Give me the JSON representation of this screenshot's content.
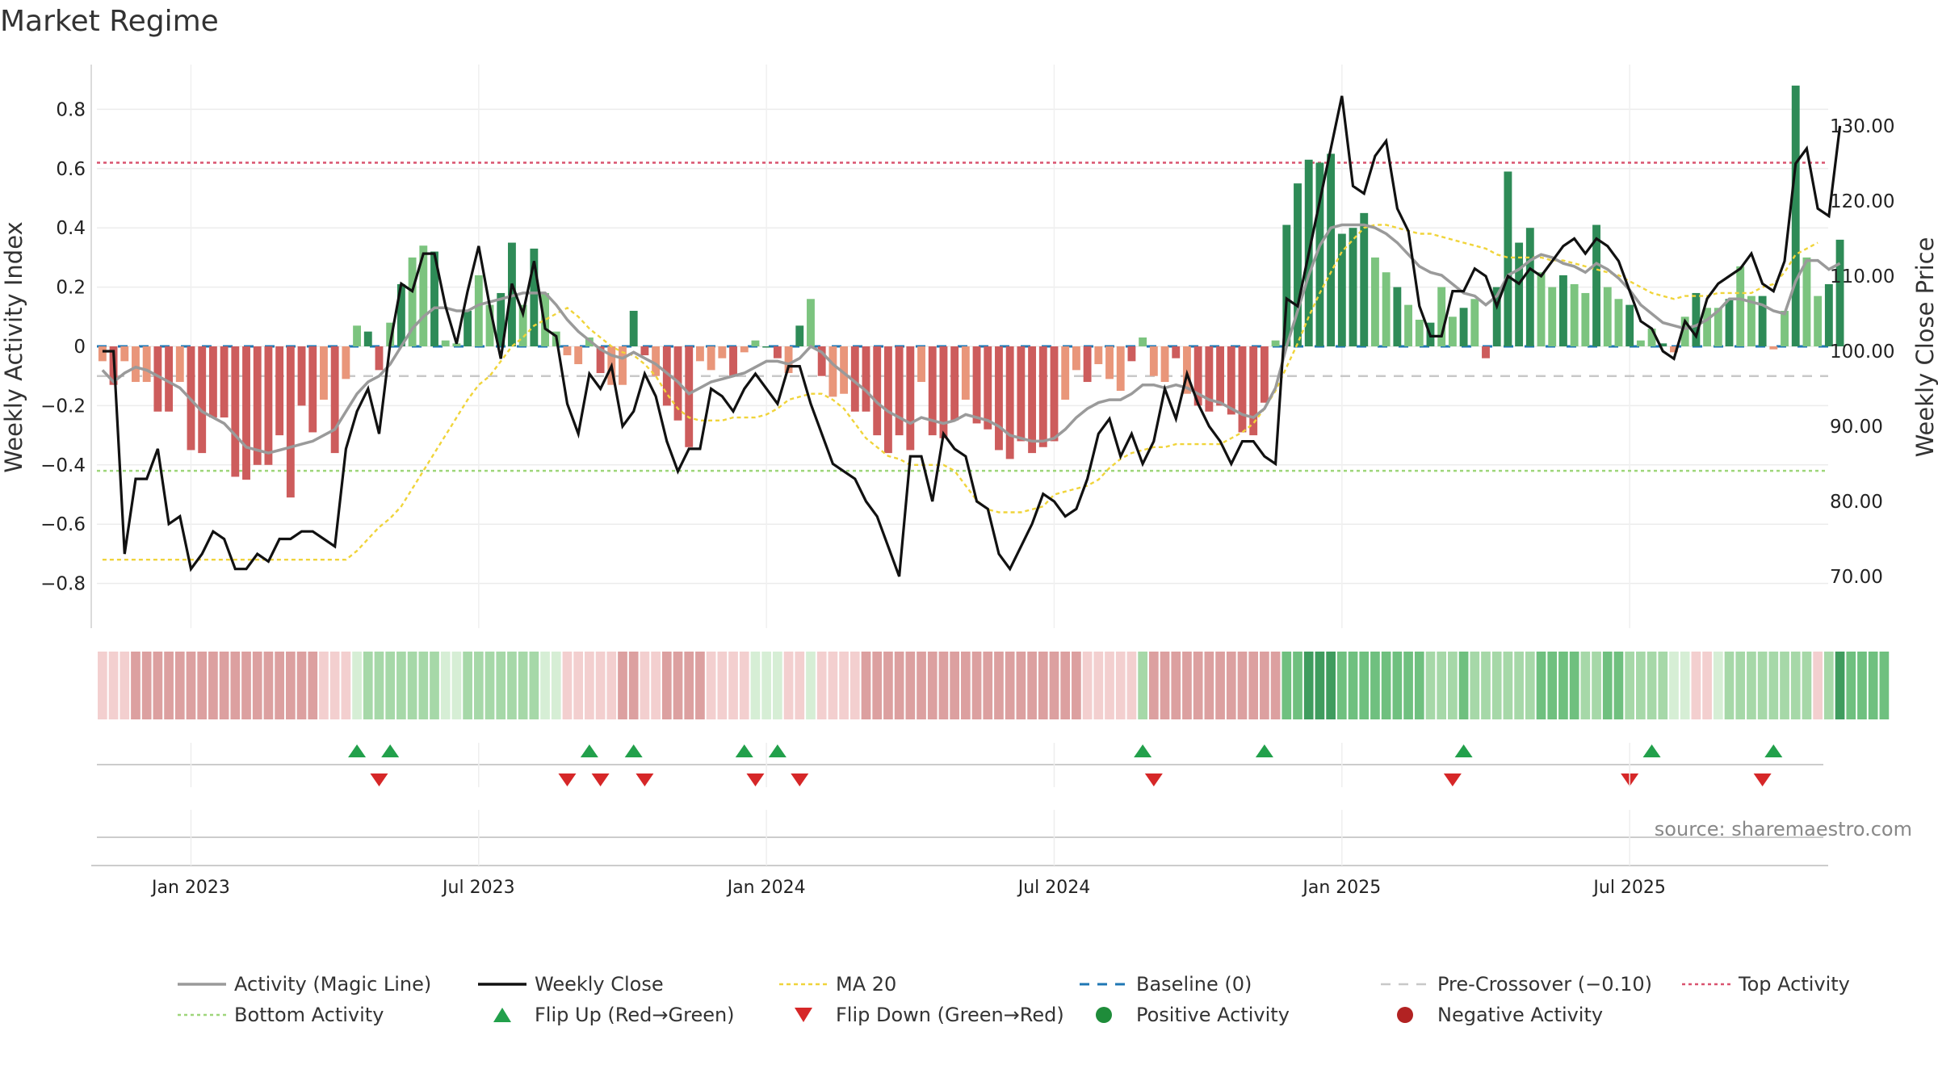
{
  "colors": {
    "bar_strong_green": "#2e8b57",
    "bar_light_green": "#7cc47f",
    "bar_strong_red": "#cd5c5c",
    "bar_light_red": "#e9967a",
    "magic_line": "#9a9a9a",
    "weekly_close": "#111111",
    "ma20": "#f0d43a",
    "baseline": "#1f77b4",
    "pre_crossover": "#c8c8c8",
    "top_activity": "#d9536f",
    "bottom_activity": "#9ed67a",
    "flip_up": "#22a04b",
    "flip_down": "#d62728"
  },
  "chart_data": {
    "type": "bar",
    "title": "Market Regime",
    "ylabel_left": "Weekly Activity Index",
    "ylabel_right": "Weekly Close Price",
    "source": "source: sharemaestro.com",
    "yticks_left": [
      "0.8",
      "0.6",
      "0.4",
      "0.2",
      "0",
      "−0.2",
      "−0.4",
      "−0.6",
      "−0.8"
    ],
    "yticks_right": [
      "130.00",
      "120.00",
      "110.00",
      "100.00",
      "90.00",
      "80.00",
      "70.00"
    ],
    "ylim_left": [
      -0.95,
      0.95
    ],
    "ylim_right": [
      62,
      140
    ],
    "date_ticks": [
      "Jan 2023",
      "Jul 2023",
      "Jan 2024",
      "Jul 2024",
      "Jan 2025",
      "Jul 2025"
    ],
    "date_tick_weeks": [
      8,
      34,
      60,
      86,
      112,
      138
    ],
    "total_weeks": 156,
    "top_activity": 0.62,
    "bottom_activity": -0.42,
    "pre_crossover": -0.1,
    "baseline": 0,
    "activity": [
      -0.05,
      -0.13,
      -0.05,
      -0.12,
      -0.12,
      -0.22,
      -0.22,
      -0.12,
      -0.35,
      -0.36,
      -0.24,
      -0.24,
      -0.44,
      -0.45,
      -0.4,
      -0.4,
      -0.3,
      -0.51,
      -0.2,
      -0.29,
      -0.18,
      -0.36,
      -0.11,
      0.07,
      0.05,
      -0.08,
      0.08,
      0.21,
      0.3,
      0.34,
      0.32,
      0.02,
      0.01,
      0.12,
      0.24,
      0.14,
      0.18,
      0.35,
      0.14,
      0.33,
      0.18,
      0.05,
      -0.03,
      -0.06,
      0.03,
      -0.09,
      -0.13,
      -0.13,
      0.12,
      -0.03,
      -0.1,
      -0.2,
      -0.25,
      -0.34,
      -0.05,
      -0.08,
      -0.04,
      -0.1,
      -0.02,
      0.02,
      0.0,
      -0.04,
      -0.09,
      0.07,
      0.16,
      -0.1,
      -0.17,
      -0.16,
      -0.22,
      -0.22,
      -0.3,
      -0.36,
      -0.3,
      -0.35,
      -0.12,
      -0.3,
      -0.31,
      -0.25,
      -0.18,
      -0.26,
      -0.28,
      -0.35,
      -0.38,
      -0.32,
      -0.36,
      -0.34,
      -0.32,
      -0.18,
      -0.08,
      -0.12,
      -0.06,
      -0.11,
      -0.15,
      -0.05,
      0.03,
      -0.1,
      -0.12,
      -0.04,
      -0.16,
      -0.2,
      -0.22,
      -0.2,
      -0.23,
      -0.29,
      -0.3,
      -0.19,
      0.02,
      0.41,
      0.55,
      0.63,
      0.62,
      0.65,
      0.38,
      0.4,
      0.45,
      0.3,
      0.25,
      0.2,
      0.14,
      0.09,
      0.08,
      0.2,
      0.1,
      0.13,
      0.16,
      -0.04,
      0.2,
      0.59,
      0.35,
      0.4,
      0.25,
      0.2,
      0.24,
      0.21,
      0.18,
      0.41,
      0.2,
      0.16,
      0.14,
      0.02,
      0.06,
      0.01,
      -0.02,
      0.1,
      0.18,
      0.13,
      0.13,
      0.16,
      0.27,
      0.17,
      0.17,
      -0.01,
      0.12,
      0.88,
      0.3,
      0.17,
      0.21,
      0.36
    ],
    "weekly_close": [
      100,
      100,
      73,
      83,
      83,
      87,
      77,
      78,
      71,
      73,
      76,
      75,
      71,
      71,
      73,
      72,
      75,
      75,
      76,
      76,
      75,
      74,
      87,
      92,
      95,
      89,
      101,
      109,
      108,
      113,
      113,
      106,
      101,
      108,
      114,
      106,
      99,
      109,
      105,
      112,
      103,
      102,
      93,
      89,
      97,
      95,
      98,
      90,
      92,
      97,
      94,
      88,
      84,
      87,
      87,
      95,
      94,
      92,
      95,
      97,
      95,
      93,
      98,
      98,
      93,
      89,
      85,
      84,
      83,
      80,
      78,
      74,
      70,
      86,
      86,
      80,
      89,
      87,
      86,
      80,
      79,
      73,
      71,
      74,
      77,
      81,
      80,
      78,
      79,
      83,
      89,
      91,
      86,
      89,
      85,
      88,
      95,
      91,
      97,
      93,
      90,
      88,
      85,
      88,
      88,
      86,
      85,
      107,
      106,
      113,
      120,
      127,
      134,
      122,
      121,
      126,
      128,
      119,
      116,
      106,
      102,
      102,
      108,
      108,
      111,
      110,
      106,
      110,
      109,
      111,
      110,
      112,
      114,
      115,
      113,
      115,
      114,
      112,
      108,
      104,
      103,
      100,
      99,
      104,
      102,
      107,
      109,
      110,
      111,
      113,
      109,
      108,
      112,
      125,
      127,
      119,
      118,
      130
    ],
    "magic_line": [
      -0.08,
      -0.12,
      -0.09,
      -0.07,
      -0.08,
      -0.1,
      -0.12,
      -0.14,
      -0.18,
      -0.22,
      -0.24,
      -0.26,
      -0.3,
      -0.34,
      -0.35,
      -0.36,
      -0.35,
      -0.34,
      -0.33,
      -0.32,
      -0.3,
      -0.28,
      -0.22,
      -0.16,
      -0.12,
      -0.1,
      -0.06,
      0.0,
      0.06,
      0.1,
      0.13,
      0.13,
      0.12,
      0.12,
      0.14,
      0.15,
      0.16,
      0.17,
      0.18,
      0.18,
      0.18,
      0.14,
      0.09,
      0.05,
      0.02,
      -0.01,
      -0.03,
      -0.04,
      -0.02,
      -0.04,
      -0.06,
      -0.09,
      -0.12,
      -0.16,
      -0.14,
      -0.12,
      -0.11,
      -0.1,
      -0.09,
      -0.07,
      -0.05,
      -0.05,
      -0.06,
      -0.04,
      0.0,
      -0.02,
      -0.06,
      -0.09,
      -0.12,
      -0.15,
      -0.19,
      -0.22,
      -0.24,
      -0.26,
      -0.24,
      -0.25,
      -0.26,
      -0.25,
      -0.23,
      -0.24,
      -0.25,
      -0.27,
      -0.3,
      -0.31,
      -0.32,
      -0.32,
      -0.31,
      -0.28,
      -0.24,
      -0.21,
      -0.19,
      -0.18,
      -0.18,
      -0.16,
      -0.13,
      -0.13,
      -0.14,
      -0.13,
      -0.14,
      -0.16,
      -0.18,
      -0.19,
      -0.21,
      -0.23,
      -0.24,
      -0.21,
      -0.14,
      0.0,
      0.12,
      0.24,
      0.34,
      0.4,
      0.41,
      0.41,
      0.41,
      0.4,
      0.38,
      0.35,
      0.31,
      0.27,
      0.25,
      0.24,
      0.21,
      0.18,
      0.17,
      0.14,
      0.17,
      0.24,
      0.26,
      0.29,
      0.31,
      0.3,
      0.28,
      0.27,
      0.25,
      0.28,
      0.26,
      0.23,
      0.19,
      0.14,
      0.11,
      0.08,
      0.07,
      0.06,
      0.07,
      0.09,
      0.12,
      0.16,
      0.16,
      0.15,
      0.14,
      0.12,
      0.11,
      0.22,
      0.29,
      0.29,
      0.26,
      0.28
    ],
    "ma20": [
      -0.72,
      -0.72,
      -0.72,
      -0.72,
      -0.72,
      -0.72,
      -0.72,
      -0.72,
      -0.72,
      -0.72,
      -0.72,
      -0.72,
      -0.72,
      -0.72,
      -0.72,
      -0.72,
      -0.72,
      -0.72,
      -0.72,
      -0.72,
      -0.72,
      -0.72,
      -0.72,
      -0.69,
      -0.65,
      -0.61,
      -0.58,
      -0.54,
      -0.48,
      -0.42,
      -0.36,
      -0.3,
      -0.24,
      -0.18,
      -0.13,
      -0.1,
      -0.05,
      0.0,
      0.03,
      0.07,
      0.09,
      0.11,
      0.13,
      0.1,
      0.06,
      0.03,
      0.0,
      -0.02,
      -0.03,
      -0.06,
      -0.1,
      -0.16,
      -0.21,
      -0.24,
      -0.25,
      -0.25,
      -0.25,
      -0.24,
      -0.24,
      -0.24,
      -0.23,
      -0.21,
      -0.18,
      -0.17,
      -0.16,
      -0.16,
      -0.18,
      -0.21,
      -0.26,
      -0.31,
      -0.34,
      -0.37,
      -0.38,
      -0.4,
      -0.4,
      -0.4,
      -0.4,
      -0.42,
      -0.47,
      -0.52,
      -0.55,
      -0.56,
      -0.56,
      -0.56,
      -0.55,
      -0.54,
      -0.5,
      -0.49,
      -0.48,
      -0.47,
      -0.45,
      -0.41,
      -0.38,
      -0.36,
      -0.35,
      -0.34,
      -0.34,
      -0.33,
      -0.33,
      -0.33,
      -0.33,
      -0.33,
      -0.31,
      -0.29,
      -0.26,
      -0.21,
      -0.15,
      -0.07,
      0.01,
      0.1,
      0.18,
      0.25,
      0.32,
      0.36,
      0.4,
      0.41,
      0.41,
      0.4,
      0.39,
      0.38,
      0.38,
      0.37,
      0.36,
      0.35,
      0.34,
      0.33,
      0.31,
      0.3,
      0.3,
      0.3,
      0.3,
      0.29,
      0.29,
      0.28,
      0.27,
      0.26,
      0.25,
      0.24,
      0.22,
      0.2,
      0.18,
      0.17,
      0.16,
      0.17,
      0.17,
      0.17,
      0.18,
      0.18,
      0.18,
      0.18,
      0.2,
      0.21,
      0.25,
      0.31,
      0.33,
      0.35
    ],
    "ribbon": [
      0,
      0,
      0,
      1,
      1,
      1,
      1,
      1,
      1,
      1,
      1,
      1,
      1,
      1,
      1,
      1,
      1,
      1,
      1,
      1,
      0,
      0,
      0,
      5,
      6,
      6,
      6,
      6,
      6,
      6,
      6,
      5,
      5,
      6,
      6,
      6,
      6,
      6,
      6,
      6,
      5,
      5,
      0,
      0,
      0,
      0,
      0,
      1,
      1,
      0,
      0,
      1,
      1,
      1,
      1,
      0,
      0,
      0,
      0,
      5,
      5,
      5,
      0,
      0,
      5,
      0,
      0,
      0,
      0,
      1,
      1,
      1,
      1,
      1,
      1,
      1,
      1,
      1,
      1,
      1,
      1,
      1,
      1,
      1,
      1,
      1,
      1,
      1,
      1,
      0,
      0,
      0,
      0,
      0,
      6,
      1,
      1,
      1,
      1,
      1,
      1,
      1,
      1,
      1,
      1,
      1,
      1,
      7,
      7,
      8,
      8,
      8,
      7,
      7,
      7,
      7,
      7,
      7,
      7,
      7,
      6,
      6,
      6,
      7,
      6,
      6,
      6,
      6,
      6,
      6,
      7,
      7,
      7,
      7,
      6,
      6,
      7,
      7,
      6,
      6,
      6,
      6,
      5,
      5,
      0,
      0,
      5,
      6,
      6,
      6,
      6,
      6,
      6,
      6,
      6,
      0,
      6,
      8,
      7,
      7,
      7,
      7
    ],
    "flip_up_weeks": [
      23,
      26,
      44,
      48,
      58,
      61,
      94,
      105,
      123,
      140,
      151
    ],
    "flip_down_weeks": [
      25,
      42,
      45,
      49,
      59,
      63,
      95,
      122,
      138,
      150
    ],
    "legend": [
      "Activity (Magic Line)",
      "Weekly Close",
      "MA 20",
      "Baseline (0)",
      "Pre-Crossover (−0.10)",
      "Top Activity",
      "Bottom Activity",
      "Flip Up (Red→Green)",
      "Flip Down (Green→Red)",
      "Positive Activity",
      "Negative Activity"
    ]
  }
}
